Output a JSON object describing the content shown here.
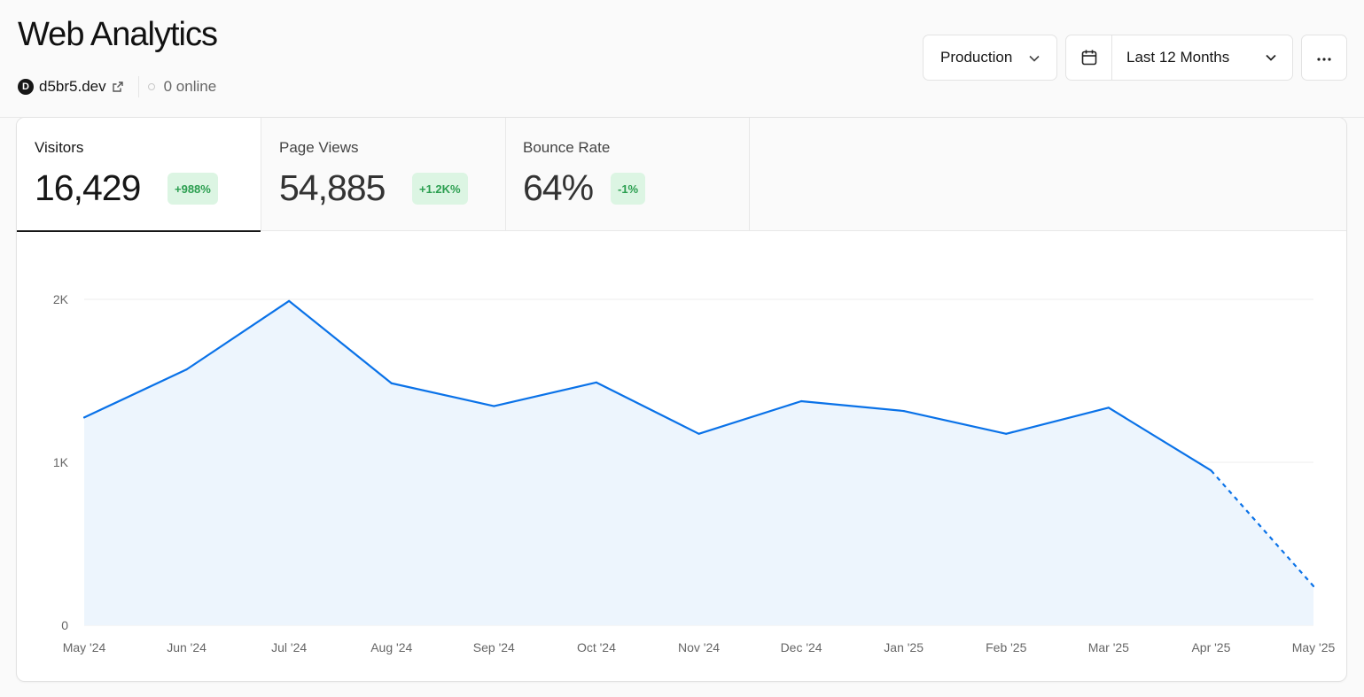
{
  "header": {
    "title": "Web Analytics",
    "site_initial": "D",
    "site_name": "d5br5.dev",
    "online": "0 online"
  },
  "controls": {
    "environment": "Production",
    "date_range": "Last 12 Months"
  },
  "tabs": [
    {
      "label": "Visitors",
      "value": "16,429",
      "change": "+988%",
      "active": true
    },
    {
      "label": "Page Views",
      "value": "54,885",
      "change": "+1.2K%",
      "active": false
    },
    {
      "label": "Bounce Rate",
      "value": "64%",
      "change": "-1%",
      "active": false
    }
  ],
  "colors": {
    "line": "#0a72e8",
    "area": "#edf5fd",
    "badge_bg": "#dcf5e3",
    "badge_text": "#2a9e4f"
  },
  "chart_data": {
    "type": "area",
    "x": [
      "May '24",
      "Jun '24",
      "Jul '24",
      "Aug '24",
      "Sep '24",
      "Oct '24",
      "Nov '24",
      "Dec '24",
      "Jan '25",
      "Feb '25",
      "Mar '25",
      "Apr '25",
      "May '25"
    ],
    "series": [
      {
        "values": [
          1275,
          1570,
          1990,
          1485,
          1345,
          1490,
          1175,
          1375,
          1315,
          1175,
          1335,
          950,
          240
        ],
        "incomplete_last_segment": true
      }
    ],
    "y_ticks": [
      "0",
      "1K",
      "2K"
    ],
    "ylim": [
      0,
      2000
    ],
    "grid": true,
    "legend": "none"
  }
}
